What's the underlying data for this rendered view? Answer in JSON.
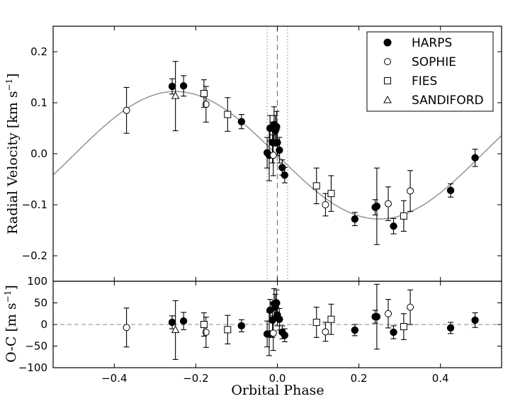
{
  "chart_data": {
    "type": "scatter",
    "x_label": "Orbital Phase",
    "x_ticks": [
      "−0.4",
      "−0.2",
      "0.0",
      "0.2",
      "0.4"
    ],
    "x_tick_values": [
      -0.4,
      -0.2,
      0.0,
      0.2,
      0.4
    ],
    "xlim": [
      -0.55,
      0.55
    ],
    "legend": {
      "placement": "top-right",
      "entries": [
        {
          "name": "HARPS",
          "marker": "filled-circle"
        },
        {
          "name": "SOPHIE",
          "marker": "open-circle"
        },
        {
          "name": "FIES",
          "marker": "open-square"
        },
        {
          "name": "SANDIFORD",
          "marker": "open-triangle"
        }
      ]
    },
    "panels": [
      {
        "id": "rv",
        "ylabel_main": "Radial Velocity [km s",
        "ylabel_sup": "−1",
        "ylabel_tail": "]",
        "ylim": [
          -0.25,
          0.25
        ],
        "y_ticks": [
          "0.2",
          "0.1",
          "0.0",
          "−0.1",
          "−0.2"
        ],
        "y_tick_values": [
          0.2,
          0.1,
          0.0,
          -0.1,
          -0.2
        ],
        "model_curve": {
          "offset": -0.003,
          "amplitude": 0.125,
          "peak_phase": -0.25,
          "color": "#999999"
        },
        "vertical_lines": [
          {
            "x": 0.0,
            "style": "dashed",
            "color": "#777777"
          },
          {
            "x": -0.025,
            "style": "dotted",
            "color": "#999999"
          },
          {
            "x": 0.025,
            "style": "dotted",
            "color": "#999999"
          }
        ]
      },
      {
        "id": "oc",
        "ylabel_main": "O-C [m s",
        "ylabel_sup": "−1",
        "ylabel_tail": "]",
        "ylim": [
          -100,
          100
        ],
        "y_ticks": [
          "100",
          "50",
          "0",
          "−50",
          "−100"
        ],
        "y_tick_values": [
          100,
          50,
          0,
          -50,
          -100
        ],
        "zero_line": {
          "y": 0,
          "style": "dashed",
          "color": "#888888"
        }
      }
    ],
    "series": [
      {
        "name": "HARPS",
        "marker": "filled-circle",
        "rv": [
          {
            "x": -0.258,
            "y": 0.132,
            "err": 0.015
          },
          {
            "x": -0.23,
            "y": 0.133,
            "err": 0.02
          },
          {
            "x": -0.088,
            "y": 0.063,
            "err": 0.014
          },
          {
            "x": -0.025,
            "y": 0.002,
            "err": 0.03
          },
          {
            "x": -0.02,
            "y": -0.003,
            "err": 0.05
          },
          {
            "x": -0.018,
            "y": 0.05,
            "err": 0.025
          },
          {
            "x": -0.012,
            "y": 0.022,
            "err": 0.04
          },
          {
            "x": -0.008,
            "y": 0.057,
            "err": 0.035
          },
          {
            "x": -0.005,
            "y": 0.045,
            "err": 0.03
          },
          {
            "x": -0.002,
            "y": 0.053,
            "err": 0.03
          },
          {
            "x": 0.0,
            "y": 0.022,
            "err": 0.025
          },
          {
            "x": 0.005,
            "y": 0.007,
            "err": 0.025
          },
          {
            "x": 0.012,
            "y": -0.027,
            "err": 0.015
          },
          {
            "x": 0.018,
            "y": -0.042,
            "err": 0.015
          },
          {
            "x": 0.19,
            "y": -0.128,
            "err": 0.013
          },
          {
            "x": 0.24,
            "y": -0.105,
            "err": 0.015
          },
          {
            "x": 0.244,
            "y": -0.103,
            "err": 0.075
          },
          {
            "x": 0.285,
            "y": -0.142,
            "err": 0.015
          },
          {
            "x": 0.425,
            "y": -0.072,
            "err": 0.013
          },
          {
            "x": 0.485,
            "y": -0.008,
            "err": 0.017
          }
        ],
        "oc": [
          {
            "x": -0.258,
            "y": 5,
            "err": 15
          },
          {
            "x": -0.23,
            "y": 8,
            "err": 20
          },
          {
            "x": -0.088,
            "y": -3,
            "err": 14
          },
          {
            "x": -0.025,
            "y": -22,
            "err": 30
          },
          {
            "x": -0.02,
            "y": -22,
            "err": 50
          },
          {
            "x": -0.018,
            "y": 33,
            "err": 25
          },
          {
            "x": -0.012,
            "y": 10,
            "err": 40
          },
          {
            "x": -0.008,
            "y": 48,
            "err": 35
          },
          {
            "x": -0.005,
            "y": 40,
            "err": 30
          },
          {
            "x": -0.002,
            "y": 50,
            "err": 30
          },
          {
            "x": 0.0,
            "y": 22,
            "err": 25
          },
          {
            "x": 0.005,
            "y": 12,
            "err": 25
          },
          {
            "x": 0.012,
            "y": -18,
            "err": 15
          },
          {
            "x": 0.018,
            "y": -25,
            "err": 15
          },
          {
            "x": 0.19,
            "y": -13,
            "err": 13
          },
          {
            "x": 0.24,
            "y": 18,
            "err": 15
          },
          {
            "x": 0.244,
            "y": 18,
            "err": 75
          },
          {
            "x": 0.285,
            "y": -18,
            "err": 15
          },
          {
            "x": 0.425,
            "y": -8,
            "err": 13
          },
          {
            "x": 0.485,
            "y": 10,
            "err": 17
          }
        ]
      },
      {
        "name": "SOPHIE",
        "marker": "open-circle",
        "rv": [
          {
            "x": -0.37,
            "y": 0.085,
            "err": 0.045
          },
          {
            "x": -0.175,
            "y": 0.097,
            "err": 0.035
          },
          {
            "x": -0.01,
            "y": -0.003,
            "err": 0.04
          },
          {
            "x": 0.118,
            "y": -0.1,
            "err": 0.022
          },
          {
            "x": 0.272,
            "y": -0.098,
            "err": 0.033
          },
          {
            "x": 0.326,
            "y": -0.073,
            "err": 0.04
          }
        ],
        "oc": [
          {
            "x": -0.37,
            "y": -7,
            "err": 45
          },
          {
            "x": -0.175,
            "y": -18,
            "err": 35
          },
          {
            "x": -0.01,
            "y": -20,
            "err": 40
          },
          {
            "x": 0.118,
            "y": -17,
            "err": 22
          },
          {
            "x": 0.272,
            "y": 25,
            "err": 33
          },
          {
            "x": 0.326,
            "y": 40,
            "err": 40
          }
        ]
      },
      {
        "name": "FIES",
        "marker": "open-square",
        "rv": [
          {
            "x": -0.18,
            "y": 0.118,
            "err": 0.027
          },
          {
            "x": -0.122,
            "y": 0.077,
            "err": 0.033
          },
          {
            "x": 0.096,
            "y": -0.063,
            "err": 0.035
          },
          {
            "x": 0.132,
            "y": -0.078,
            "err": 0.035
          },
          {
            "x": 0.31,
            "y": -0.122,
            "err": 0.03
          }
        ],
        "oc": [
          {
            "x": -0.18,
            "y": 0,
            "err": 27
          },
          {
            "x": -0.122,
            "y": -12,
            "err": 33
          },
          {
            "x": 0.096,
            "y": 5,
            "err": 35
          },
          {
            "x": 0.132,
            "y": 12,
            "err": 35
          },
          {
            "x": 0.31,
            "y": -5,
            "err": 30
          }
        ]
      },
      {
        "name": "SANDIFORD",
        "marker": "open-triangle",
        "rv": [
          {
            "x": -0.25,
            "y": 0.113,
            "err": 0.068
          }
        ],
        "oc": [
          {
            "x": -0.25,
            "y": -13,
            "err": 68
          }
        ]
      }
    ]
  }
}
